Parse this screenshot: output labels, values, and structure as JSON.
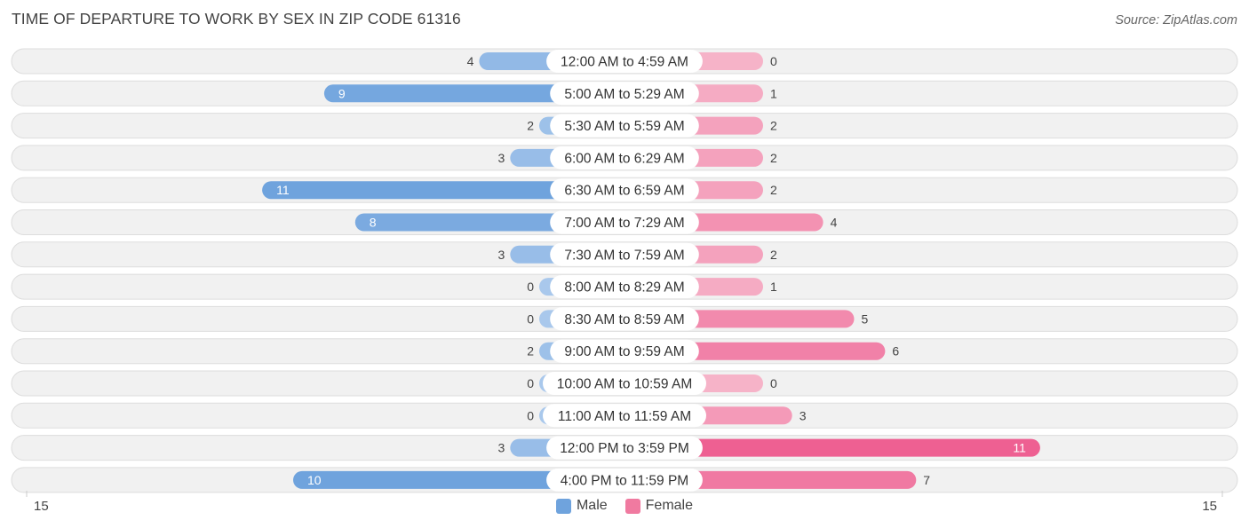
{
  "chart_data": {
    "type": "bar",
    "orientation": "horizontal-diverging",
    "title": "TIME OF DEPARTURE TO WORK BY SEX IN ZIP CODE 61316",
    "source": "Source: ZipAtlas.com",
    "categories": [
      "12:00 AM to 4:59 AM",
      "5:00 AM to 5:29 AM",
      "5:30 AM to 5:59 AM",
      "6:00 AM to 6:29 AM",
      "6:30 AM to 6:59 AM",
      "7:00 AM to 7:29 AM",
      "7:30 AM to 7:59 AM",
      "8:00 AM to 8:29 AM",
      "8:30 AM to 8:59 AM",
      "9:00 AM to 9:59 AM",
      "10:00 AM to 10:59 AM",
      "11:00 AM to 11:59 AM",
      "12:00 PM to 3:59 PM",
      "4:00 PM to 11:59 PM"
    ],
    "series": [
      {
        "name": "Male",
        "color": "#6fa3dd",
        "values": [
          4,
          9,
          2,
          3,
          11,
          8,
          3,
          0,
          0,
          2,
          0,
          0,
          3,
          10
        ]
      },
      {
        "name": "Female",
        "color": "#f07aa0",
        "values": [
          0,
          1,
          2,
          2,
          2,
          4,
          2,
          1,
          5,
          6,
          0,
          3,
          11,
          7
        ]
      }
    ],
    "axis_min_label": "15",
    "axis_max_label": "15",
    "xlim": [
      -15,
      15
    ],
    "legend": [
      "Male",
      "Female"
    ],
    "legend_position": "bottom-center"
  }
}
